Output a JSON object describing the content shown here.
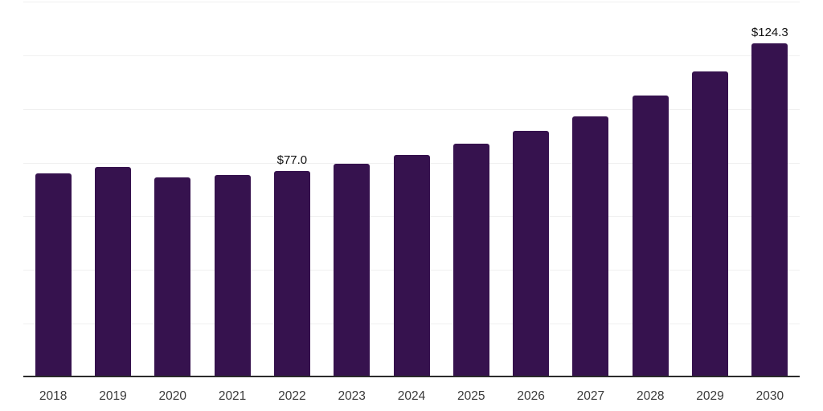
{
  "chart_data": {
    "type": "bar",
    "title": "",
    "xlabel": "",
    "ylabel": "",
    "categories": [
      "2018",
      "2019",
      "2020",
      "2021",
      "2022",
      "2023",
      "2024",
      "2025",
      "2026",
      "2027",
      "2028",
      "2029",
      "2030"
    ],
    "values": [
      75.9,
      78.3,
      74.5,
      75.5,
      77.0,
      79.6,
      82.8,
      87.1,
      91.7,
      97.1,
      105.0,
      114.0,
      124.3
    ],
    "bar_labels": [
      "",
      "",
      "",
      "",
      "$77.0",
      "",
      "",
      "",
      "",
      "",
      "",
      "",
      "$124.3"
    ],
    "ylim": [
      0,
      140
    ],
    "gridline_step": 20,
    "grid": "horizontal-only",
    "legend": "none",
    "y_axis_labels_visible": false,
    "colors": {
      "bar_fill": "#36124E",
      "gridline": "#F0F0F0",
      "axis_line": "#2B2B2B",
      "bar_label_text": "#111111",
      "tick_label_text": "#3A3A3A",
      "background": "#FFFFFF"
    }
  }
}
